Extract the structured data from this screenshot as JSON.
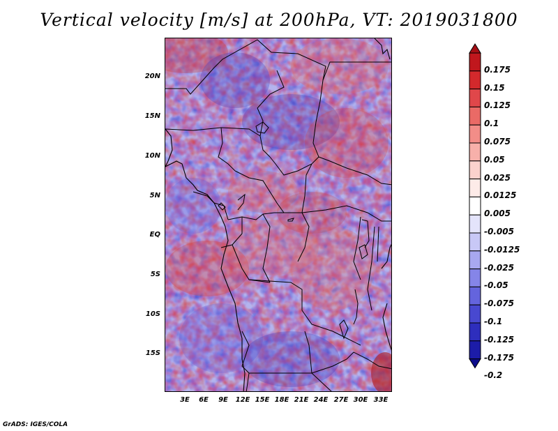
{
  "map": {
    "title": "Vertical velocity [m/s] at 200hPa, VT: 2019031800",
    "footer": "GrADS: IGES/COLA",
    "lat_labels": [
      "20N",
      "15N",
      "10N",
      "5N",
      "EQ",
      "5S",
      "10S",
      "15S"
    ],
    "lon_labels": [
      "3E",
      "6E",
      "9E",
      "12E",
      "15E",
      "18E",
      "21E",
      "24E",
      "27E",
      "30E",
      "33E"
    ]
  },
  "colorbar": {
    "labels": [
      "0.175",
      "0.15",
      "0.125",
      "0.1",
      "0.075",
      "0.05",
      "0.025",
      "0.0125",
      "0.005",
      "-0.005",
      "-0.0125",
      "-0.025",
      "-0.05",
      "-0.075",
      "-0.1",
      "-0.125",
      "-0.175",
      "-0.2"
    ],
    "colors": [
      "#a50f15",
      "#c0171d",
      "#d3292c",
      "#e0474a",
      "#ea6a66",
      "#f28d88",
      "#f7b0aa",
      "#fbd2cd",
      "#fdebe8",
      "#ffffff",
      "#e4e4fb",
      "#c8c8f6",
      "#a8a8f0",
      "#8585e8",
      "#6464dd",
      "#4848d0",
      "#2e2ebd",
      "#1c1ca8",
      "#0d0d8c"
    ]
  }
}
